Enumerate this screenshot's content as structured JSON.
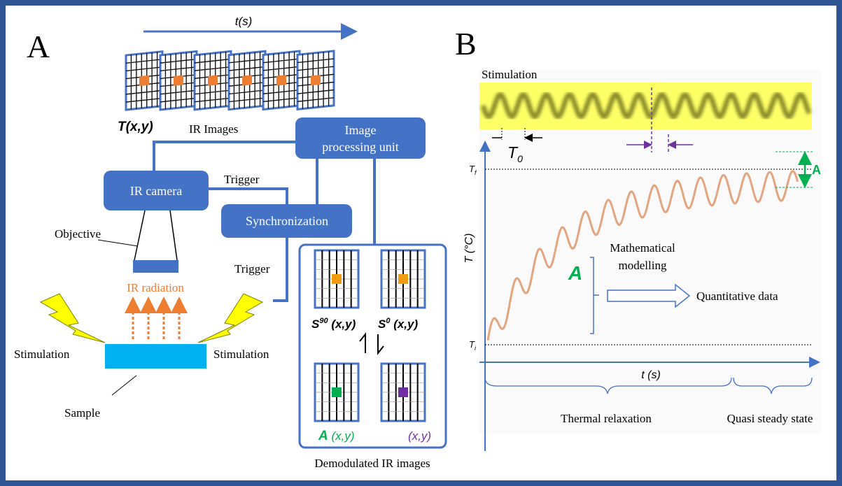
{
  "panel_a": {
    "label": "A",
    "time_axis": "t(s)",
    "ir_stack_label": "T(x,y)",
    "ir_images": "IR Images",
    "image_processing_unit": [
      "Image",
      "processing unit"
    ],
    "ir_camera": "IR camera",
    "trigger_top": "Trigger",
    "synchronization": "Synchronization",
    "objective": "Objective",
    "trigger_bottom": "Trigger",
    "ir_radiation": "IR radiation",
    "stimulation_left": "Stimulation",
    "stimulation_right": "Stimulation",
    "sample": "Sample",
    "demodulated": {
      "s90": {
        "base": "S",
        "sup": "90",
        "args": " (x,y)"
      },
      "s0": {
        "base": "S",
        "sup": "0",
        "args": " (x,y)"
      },
      "amplitude": {
        "base": "A",
        "args": " (x,y)"
      },
      "phase": "(x,y)",
      "caption": "Demodulated IR images"
    }
  },
  "panel_b": {
    "label": "B",
    "stimulation": "Stimulation",
    "period": {
      "base": "T",
      "sub": "0"
    },
    "t_final": {
      "base": "T",
      "sub": "f"
    },
    "t_initial": {
      "base": "T",
      "sub": "i"
    },
    "amplitude": "A",
    "y_axis": "T (°C)",
    "x_axis": "t (s)",
    "modelling": [
      "Mathematical",
      "modelling"
    ],
    "model_input": "A",
    "quantitative_data": "Quantitative data",
    "phase_relaxation": "Thermal relaxation",
    "phase_steady": "Quasi steady state"
  }
}
